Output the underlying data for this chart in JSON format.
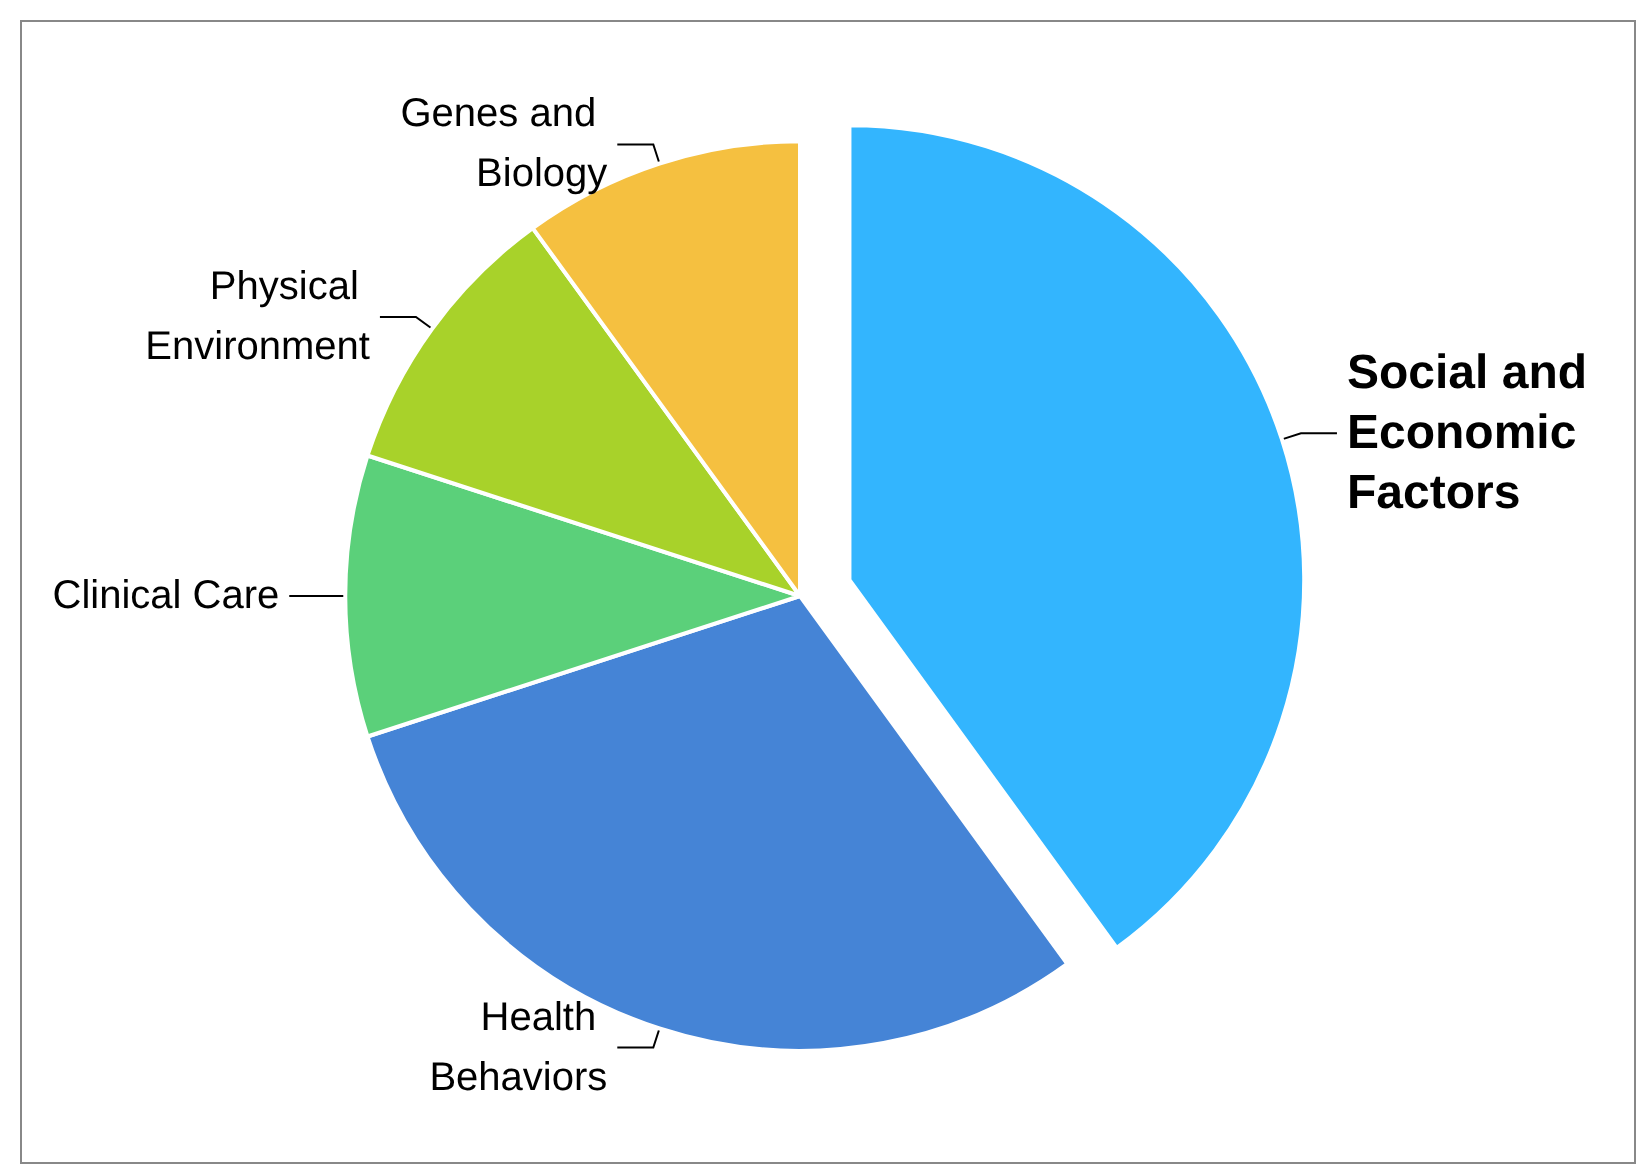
{
  "chart_data": {
    "type": "pie",
    "categories": [
      "Social and Economic Factors",
      "Health Behaviors",
      "Clinical Care",
      "Physical Environment",
      "Genes and Biology"
    ],
    "values": [
      40,
      30,
      10,
      10,
      10
    ],
    "colors": [
      "#33b5fe",
      "#4584d6",
      "#5bd07a",
      "#a8d22a",
      "#f5c040"
    ],
    "legend": false
  }
}
